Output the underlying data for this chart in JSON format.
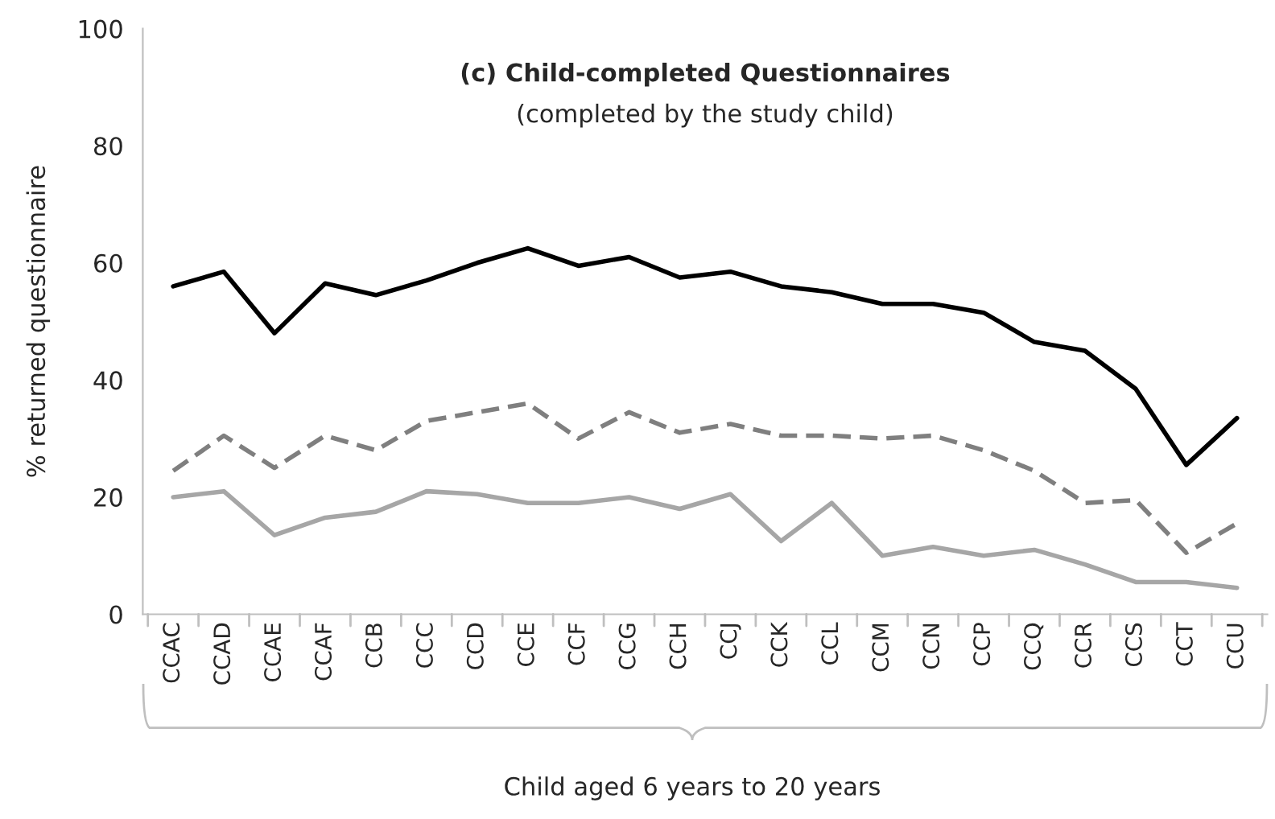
{
  "chart_data": {
    "type": "line",
    "title": "(c) Child-completed Questionnaires",
    "subtitle": "(completed by the study child)",
    "xlabel": "Child aged 6 years to 20 years",
    "ylabel": "% returned questionnaire",
    "categories": [
      "CCAC",
      "CCAD",
      "CCAE",
      "CCAF",
      "CCB",
      "CCC",
      "CCD",
      "CCE",
      "CCF",
      "CCG",
      "CCH",
      "CCJ",
      "CCK",
      "CCL",
      "CCM",
      "CCN",
      "CCP",
      "CCQ",
      "CCR",
      "CCS",
      "CCT",
      "CCU"
    ],
    "series": [
      {
        "color": "#000000",
        "line_style": "solid",
        "values": [
          56,
          58.5,
          48,
          56.5,
          54.5,
          57,
          60,
          62.5,
          59.5,
          61,
          57.5,
          58.5,
          56,
          55,
          53,
          53,
          51.5,
          46.5,
          45,
          38.5,
          25.5,
          33.5
        ]
      },
      {
        "color": "#7f7f7f",
        "line_style": "dashed",
        "values": [
          24.5,
          30.5,
          25,
          30.5,
          28,
          33,
          34.5,
          36,
          30,
          34.5,
          31,
          32.5,
          30.5,
          30.5,
          30,
          30.5,
          28,
          24.5,
          19,
          19.5,
          10.5,
          15.5
        ]
      },
      {
        "color": "#a6a6a6",
        "line_style": "solid",
        "values": [
          20,
          21,
          13.5,
          16.5,
          17.5,
          21,
          20.5,
          19,
          19,
          20,
          18,
          20.5,
          12.5,
          19,
          10,
          11.5,
          10,
          11,
          8.5,
          5.5,
          5.5,
          4.5
        ]
      }
    ],
    "ylim": [
      0,
      100
    ],
    "yticks": [
      0,
      20,
      40,
      60,
      80,
      100
    ],
    "grid": false,
    "legend": false,
    "marker": "none"
  }
}
